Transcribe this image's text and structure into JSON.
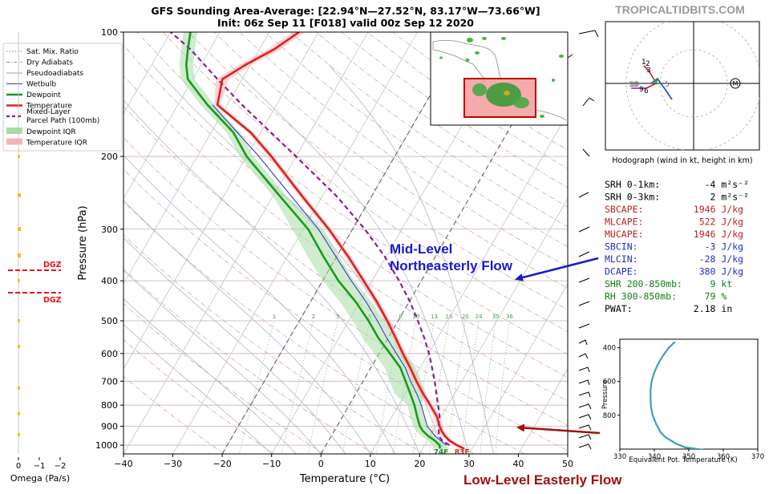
{
  "header": {
    "title": "GFS Sounding Area-Average: [22.94°N—27.52°N, 83.17°W—73.66°W]",
    "subtitle": "Init: 06z Sep 11 [F018] valid 00z Sep 12 2020",
    "brand": "TROPICALTIDBITS.COM"
  },
  "legend": {
    "items": [
      {
        "label": "Sat. Mix. Ratio",
        "color": "#808080",
        "style": "dotted"
      },
      {
        "label": "Dry Adiabats",
        "color": "#b08080",
        "style": "dashdot"
      },
      {
        "label": "Pseudoadiabats",
        "color": "#a0a0a0",
        "style": "solid-thin"
      },
      {
        "label": "Wetbulb",
        "color": "#3a3ad0",
        "style": "solid-thin"
      },
      {
        "label": "Dewpoint",
        "color": "#1a9a1a",
        "style": "solid-thick"
      },
      {
        "label": "Temperature",
        "color": "#e02020",
        "style": "solid-thick"
      },
      {
        "label": "Mixed-Layer",
        "label2": "Parcel Path (100mb)",
        "color": "#8a208a",
        "style": "dashed"
      },
      {
        "label": "Dewpoint IQR",
        "color": "#a8dca8",
        "style": "patch"
      },
      {
        "label": "Temperature IQR",
        "color": "#f4b4b4",
        "style": "patch"
      }
    ]
  },
  "omega": {
    "xlabel": "Omega (Pa/s)",
    "ticks": [
      "0",
      "−1",
      "−2"
    ],
    "dgz_label": "DGZ"
  },
  "stats": {
    "lines": [
      {
        "text": "SRH 0-1km:        -4 m²s⁻²",
        "color": "#000000"
      },
      {
        "text": "SRH 0-3km:         2 m²s⁻²",
        "color": "#000000"
      },
      {
        "text": "SBCAPE:         1946 J/kg",
        "color": "#c02020"
      },
      {
        "text": "MLCAPE:          522 J/kg",
        "color": "#c02020"
      },
      {
        "text": "MUCAPE:         1946 J/kg",
        "color": "#c02020"
      },
      {
        "text": "SBCIN:            -3 J/kg",
        "color": "#2030c0"
      },
      {
        "text": "MLCIN:           -28 J/kg",
        "color": "#2030c0"
      },
      {
        "text": "DCAPE:           380 J/kg",
        "color": "#2030c0"
      },
      {
        "text": "SHR 200-850mb:     9 kt",
        "color": "#108010"
      },
      {
        "text": "RH 300-850mb:     79 %",
        "color": "#108010"
      },
      {
        "text": "PWAT:           2.18 in",
        "color": "#000000"
      }
    ]
  },
  "hodograph": {
    "caption": "Hodograph (wind in kt, height in km)",
    "ring_labels": [
      "5",
      "10"
    ],
    "height_labels": [
      "1",
      "2",
      "3",
      "9",
      "6",
      "10"
    ],
    "storm_marker": "M"
  },
  "annotations": {
    "mid_level_1": "Mid-Level",
    "mid_level_2": "Northeasterly Flow",
    "low_level": "Low-Level Easterly Flow",
    "mid_color": "#1a1acc",
    "low_color": "#a01010"
  },
  "chart_data": [
    {
      "type": "line",
      "name": "skew-t",
      "xlabel": "Temperature (°C)",
      "ylabel": "Pressure (hPa)",
      "xlim": [
        -40,
        50
      ],
      "ylim": [
        1050,
        100
      ],
      "y_scale": "log",
      "x_ticks": [
        -40,
        -30,
        -20,
        -10,
        0,
        10,
        20,
        30,
        40,
        50
      ],
      "y_ticks": [
        100,
        200,
        300,
        400,
        500,
        600,
        700,
        800,
        900,
        1000
      ],
      "mixing_ratio_labels": [
        "1",
        "2",
        "3",
        "5",
        "8",
        "10",
        "13",
        "16",
        "20",
        "24",
        "30",
        "36"
      ],
      "surface_labels": {
        "temperature": "83F",
        "dewpoint": "74F"
      },
      "series": [
        {
          "name": "Temperature",
          "color": "#e02020",
          "points": [
            [
              1020,
              28.4
            ],
            [
              1000,
              26.5
            ],
            [
              975,
              24.5
            ],
            [
              950,
              23.0
            ],
            [
              925,
              21.8
            ],
            [
              900,
              20.8
            ],
            [
              850,
              19.0
            ],
            [
              800,
              16.4
            ],
            [
              750,
              13.6
            ],
            [
              700,
              10.8
            ],
            [
              650,
              8.0
            ],
            [
              600,
              4.8
            ],
            [
              550,
              1.5
            ],
            [
              500,
              -2.2
            ],
            [
              450,
              -6.5
            ],
            [
              400,
              -11.7
            ],
            [
              350,
              -17.6
            ],
            [
              300,
              -24.8
            ],
            [
              250,
              -34.0
            ],
            [
              200,
              -45.0
            ],
            [
              175,
              -52.0
            ],
            [
              150,
              -62.0
            ],
            [
              130,
              -64.0
            ],
            [
              120,
              -61.0
            ],
            [
              110,
              -57.0
            ],
            [
              100,
              -54.0
            ]
          ]
        },
        {
          "name": "Dewpoint",
          "color": "#1a9a1a",
          "points": [
            [
              1020,
              23.5
            ],
            [
              1000,
              23.0
            ],
            [
              975,
              21.5
            ],
            [
              950,
              19.6
            ],
            [
              925,
              18.0
            ],
            [
              900,
              16.8
            ],
            [
              850,
              15.0
            ],
            [
              800,
              13.2
            ],
            [
              750,
              11.0
            ],
            [
              700,
              8.6
            ],
            [
              650,
              6.0
            ],
            [
              600,
              2.2
            ],
            [
              550,
              -2.0
            ],
            [
              500,
              -6.0
            ],
            [
              450,
              -10.8
            ],
            [
              400,
              -16.8
            ],
            [
              350,
              -22.6
            ],
            [
              300,
              -29.0
            ],
            [
              250,
              -38.5
            ],
            [
              200,
              -50.0
            ],
            [
              175,
              -55.5
            ],
            [
              150,
              -64.0
            ],
            [
              130,
              -71.0
            ],
            [
              120,
              -73.0
            ],
            [
              110,
              -74.5
            ],
            [
              100,
              -76.0
            ]
          ]
        },
        {
          "name": "Mixed-Layer Parcel Path (100mb)",
          "color": "#8a208a",
          "points": [
            [
              1000,
              25.0
            ],
            [
              975,
              23.0
            ],
            [
              950,
              21.8
            ],
            [
              925,
              21.2
            ],
            [
              900,
              20.6
            ],
            [
              850,
              19.6
            ],
            [
              800,
              18.0
            ],
            [
              750,
              16.3
            ],
            [
              700,
              14.5
            ],
            [
              650,
              12.4
            ],
            [
              600,
              10.1
            ],
            [
              550,
              7.3
            ],
            [
              500,
              4.0
            ],
            [
              450,
              0.2
            ],
            [
              400,
              -4.5
            ],
            [
              350,
              -10.2
            ],
            [
              300,
              -17.5
            ],
            [
              250,
              -27.0
            ],
            [
              200,
              -40.0
            ],
            [
              150,
              -57.0
            ],
            [
              130,
              -65.0
            ],
            [
              110,
              -74.0
            ],
            [
              100,
              -80.0
            ]
          ]
        },
        {
          "name": "Wetbulb",
          "color": "#3a3ad0",
          "points": [
            [
              1000,
              24.4
            ],
            [
              950,
              21.0
            ],
            [
              900,
              18.3
            ],
            [
              850,
              16.5
            ],
            [
              800,
              14.6
            ],
            [
              750,
              12.3
            ],
            [
              700,
              9.6
            ],
            [
              650,
              7.0
            ],
            [
              600,
              3.5
            ],
            [
              550,
              -0.3
            ],
            [
              500,
              -4.2
            ],
            [
              450,
              -8.7
            ],
            [
              400,
              -14.2
            ],
            [
              350,
              -20.1
            ],
            [
              300,
              -26.9
            ],
            [
              250,
              -36.2
            ],
            [
              200,
              -47.5
            ],
            [
              150,
              -63.0
            ]
          ]
        }
      ]
    },
    {
      "type": "line",
      "name": "theta-e profile",
      "xlabel": "Equivalent Pot. Temperature (K)",
      "ylabel": "Pressure",
      "xlim": [
        330,
        370
      ],
      "ylim": [
        1000,
        350
      ],
      "x_ticks": [
        330,
        340,
        350,
        360,
        370
      ],
      "y_ticks": [
        400,
        600,
        800
      ],
      "series": [
        {
          "name": "Theta-E",
          "color": "#3ba0b8",
          "points": [
            [
              1005,
              354.5
            ],
            [
              990,
              349
            ],
            [
              970,
              346.5
            ],
            [
              930,
              343.2
            ],
            [
              900,
              341.8
            ],
            [
              850,
              340.5
            ],
            [
              800,
              339.5
            ],
            [
              750,
              339.0
            ],
            [
              700,
              338.9
            ],
            [
              650,
              338.9
            ],
            [
              600,
              339.2
            ],
            [
              550,
              339.9
            ],
            [
              500,
              341.0
            ],
            [
              450,
              342.4
            ],
            [
              400,
              344.2
            ],
            [
              365,
              346.0
            ]
          ]
        }
      ]
    }
  ]
}
